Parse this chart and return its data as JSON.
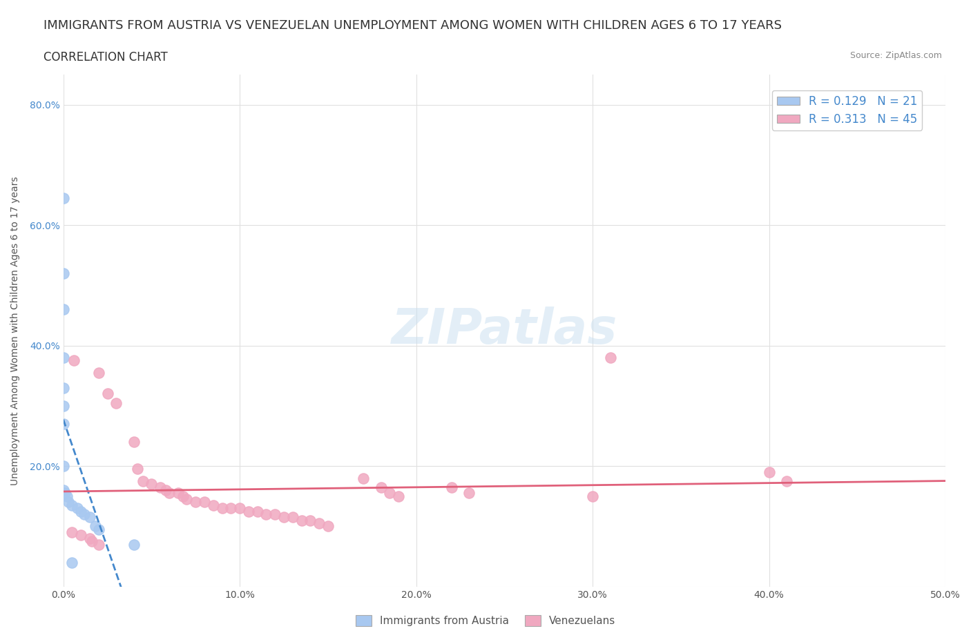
{
  "title": "IMMIGRANTS FROM AUSTRIA VS VENEZUELAN UNEMPLOYMENT AMONG WOMEN WITH CHILDREN AGES 6 TO 17 YEARS",
  "subtitle": "CORRELATION CHART",
  "source": "Source: ZipAtlas.com",
  "xlabel": "",
  "ylabel": "Unemployment Among Women with Children Ages 6 to 17 years",
  "xlim": [
    0.0,
    0.5
  ],
  "ylim": [
    0.0,
    0.85
  ],
  "xticks": [
    0.0,
    0.1,
    0.2,
    0.3,
    0.4,
    0.5
  ],
  "yticks": [
    0.0,
    0.2,
    0.4,
    0.6,
    0.8
  ],
  "xticklabels": [
    "0.0%",
    "10.0%",
    "20.0%",
    "30.0%",
    "40.0%",
    "50.0%"
  ],
  "yticklabels": [
    "",
    "20.0%",
    "40.0%",
    "60.0%",
    "80.0%"
  ],
  "watermark": "ZIPatlas",
  "austria_R": 0.129,
  "austria_N": 21,
  "venezuela_R": 0.313,
  "venezuela_N": 45,
  "austria_color": "#a8c8f0",
  "venezuela_color": "#f0a8c0",
  "austria_line_color": "#4488cc",
  "venezuela_line_color": "#e0607a",
  "austria_scatter": [
    [
      0.0,
      0.645
    ],
    [
      0.0,
      0.52
    ],
    [
      0.0,
      0.46
    ],
    [
      0.0,
      0.38
    ],
    [
      0.0,
      0.33
    ],
    [
      0.0,
      0.3
    ],
    [
      0.0,
      0.27
    ],
    [
      0.0,
      0.2
    ],
    [
      0.0,
      0.16
    ],
    [
      0.001,
      0.155
    ],
    [
      0.002,
      0.15
    ],
    [
      0.003,
      0.14
    ],
    [
      0.005,
      0.135
    ],
    [
      0.008,
      0.13
    ],
    [
      0.01,
      0.125
    ],
    [
      0.012,
      0.12
    ],
    [
      0.015,
      0.115
    ],
    [
      0.018,
      0.1
    ],
    [
      0.02,
      0.095
    ],
    [
      0.04,
      0.07
    ],
    [
      0.005,
      0.04
    ]
  ],
  "venezuela_scatter": [
    [
      0.006,
      0.375
    ],
    [
      0.02,
      0.355
    ],
    [
      0.025,
      0.32
    ],
    [
      0.03,
      0.305
    ],
    [
      0.04,
      0.24
    ],
    [
      0.042,
      0.195
    ],
    [
      0.045,
      0.175
    ],
    [
      0.05,
      0.17
    ],
    [
      0.055,
      0.165
    ],
    [
      0.058,
      0.16
    ],
    [
      0.06,
      0.155
    ],
    [
      0.065,
      0.155
    ],
    [
      0.068,
      0.15
    ],
    [
      0.07,
      0.145
    ],
    [
      0.075,
      0.14
    ],
    [
      0.08,
      0.14
    ],
    [
      0.085,
      0.135
    ],
    [
      0.09,
      0.13
    ],
    [
      0.095,
      0.13
    ],
    [
      0.1,
      0.13
    ],
    [
      0.105,
      0.125
    ],
    [
      0.11,
      0.125
    ],
    [
      0.115,
      0.12
    ],
    [
      0.12,
      0.12
    ],
    [
      0.125,
      0.115
    ],
    [
      0.13,
      0.115
    ],
    [
      0.135,
      0.11
    ],
    [
      0.14,
      0.11
    ],
    [
      0.145,
      0.105
    ],
    [
      0.15,
      0.1
    ],
    [
      0.17,
      0.18
    ],
    [
      0.18,
      0.165
    ],
    [
      0.185,
      0.155
    ],
    [
      0.19,
      0.15
    ],
    [
      0.22,
      0.165
    ],
    [
      0.23,
      0.155
    ],
    [
      0.3,
      0.15
    ],
    [
      0.31,
      0.38
    ],
    [
      0.005,
      0.09
    ],
    [
      0.01,
      0.085
    ],
    [
      0.015,
      0.08
    ],
    [
      0.016,
      0.075
    ],
    [
      0.02,
      0.07
    ],
    [
      0.4,
      0.19
    ],
    [
      0.41,
      0.175
    ]
  ],
  "background_color": "#ffffff",
  "grid_color": "#e0e0e0",
  "title_fontsize": 13,
  "subtitle_fontsize": 12,
  "axis_fontsize": 10,
  "tick_fontsize": 10,
  "legend_fontsize": 12
}
